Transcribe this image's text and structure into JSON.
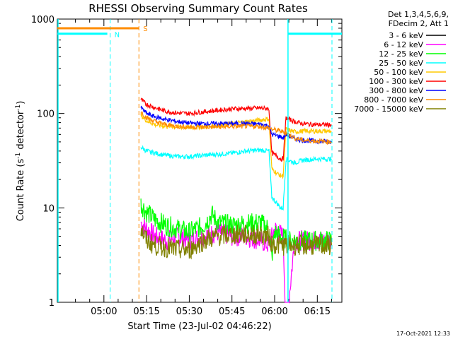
{
  "chart_data": {
    "type": "line",
    "title": "RHESSI Observing Summary Count Rates",
    "xlabel": "Start Time (23-Jul-02 04:46:22)",
    "ylabel_main": "Count Rate (s",
    "ylabel_sup1": "-1",
    "ylabel_mid": " detector",
    "ylabel_sup2": "-1",
    "ylabel_end": ")",
    "yscale": "log",
    "ylim": [
      1,
      1000
    ],
    "xlim_minutes": [
      -16.37,
      83.63
    ],
    "x_ticks": [
      {
        "label": "05:00",
        "min": 0
      },
      {
        "label": "05:15",
        "min": 15
      },
      {
        "label": "05:30",
        "min": 30
      },
      {
        "label": "05:45",
        "min": 45
      },
      {
        "label": "06:00",
        "min": 60
      },
      {
        "label": "06:15",
        "min": 75
      }
    ],
    "y_ticks": [
      {
        "label": "1",
        "value": 1
      },
      {
        "label": "10",
        "value": 10
      },
      {
        "label": "100",
        "value": 100
      },
      {
        "label": "1000",
        "value": 1000
      }
    ],
    "legend_header": [
      "Det 1,3,4,5,6,9,",
      "FDecim 2, Att 1"
    ],
    "series": [
      {
        "name": "3 - 6 keV",
        "color": "#000000",
        "values": []
      },
      {
        "name": "6 - 12 keV",
        "color": "#ff00ff",
        "values": [
          [
            13,
            7
          ],
          [
            15,
            6
          ],
          [
            18,
            5
          ],
          [
            22,
            4.5
          ],
          [
            26,
            5
          ],
          [
            30,
            4.5
          ],
          [
            35,
            5
          ],
          [
            40,
            5.5
          ],
          [
            45,
            5
          ],
          [
            50,
            5
          ],
          [
            55,
            4.5
          ],
          [
            58,
            4
          ],
          [
            60,
            6
          ],
          [
            63,
            5
          ],
          [
            64,
            0.5
          ],
          [
            67,
            4.5
          ],
          [
            70,
            4.5
          ],
          [
            75,
            4.5
          ],
          [
            80,
            4.5
          ]
        ]
      },
      {
        "name": "12 - 25 keV",
        "color": "#00ff00",
        "values": [
          [
            13,
            11
          ],
          [
            15,
            9
          ],
          [
            18,
            7.5
          ],
          [
            22,
            6.5
          ],
          [
            26,
            6
          ],
          [
            30,
            5.5
          ],
          [
            35,
            6.5
          ],
          [
            38,
            8.5
          ],
          [
            40,
            7
          ],
          [
            45,
            6.5
          ],
          [
            50,
            6.8
          ],
          [
            55,
            7
          ],
          [
            58,
            6
          ],
          [
            59,
            3
          ],
          [
            60,
            5.5
          ],
          [
            62,
            5
          ],
          [
            65,
            4.5
          ],
          [
            70,
            4.5
          ],
          [
            75,
            4.5
          ],
          [
            80,
            4.5
          ]
        ]
      },
      {
        "name": "25 - 50 keV",
        "color": "#00ffff",
        "values": [
          [
            13,
            44
          ],
          [
            15,
            40
          ],
          [
            18,
            38
          ],
          [
            22,
            36
          ],
          [
            26,
            35
          ],
          [
            30,
            35
          ],
          [
            35,
            36
          ],
          [
            40,
            37
          ],
          [
            45,
            38
          ],
          [
            50,
            40
          ],
          [
            55,
            41
          ],
          [
            58,
            40
          ],
          [
            59,
            13
          ],
          [
            61,
            11
          ],
          [
            62,
            10
          ],
          [
            63,
            10
          ],
          [
            64,
            33
          ],
          [
            67,
            30
          ],
          [
            70,
            32
          ],
          [
            75,
            33
          ],
          [
            80,
            33
          ]
        ]
      },
      {
        "name": "50 - 100 keV",
        "color": "#ffc800",
        "values": [
          [
            13,
            95
          ],
          [
            15,
            84
          ],
          [
            18,
            76
          ],
          [
            22,
            73
          ],
          [
            26,
            72
          ],
          [
            30,
            71
          ],
          [
            35,
            72
          ],
          [
            40,
            74
          ],
          [
            45,
            78
          ],
          [
            50,
            82
          ],
          [
            55,
            85
          ],
          [
            58,
            88
          ],
          [
            59,
            26
          ],
          [
            61,
            23
          ],
          [
            62,
            22
          ],
          [
            63,
            22
          ],
          [
            64,
            68
          ],
          [
            67,
            64
          ],
          [
            70,
            65
          ],
          [
            75,
            65
          ],
          [
            80,
            65
          ]
        ]
      },
      {
        "name": "100 - 300 keV",
        "color": "#ff0000",
        "values": [
          [
            13,
            140
          ],
          [
            15,
            125
          ],
          [
            18,
            115
          ],
          [
            22,
            105
          ],
          [
            26,
            101
          ],
          [
            30,
            100
          ],
          [
            35,
            104
          ],
          [
            40,
            108
          ],
          [
            45,
            112
          ],
          [
            50,
            113
          ],
          [
            55,
            114
          ],
          [
            58,
            112
          ],
          [
            59,
            38
          ],
          [
            61,
            35
          ],
          [
            62,
            33
          ],
          [
            63,
            33
          ],
          [
            64,
            90
          ],
          [
            67,
            82
          ],
          [
            70,
            78
          ],
          [
            75,
            76
          ],
          [
            80,
            76
          ]
        ]
      },
      {
        "name": "300 - 800 keV",
        "color": "#0000ff",
        "values": [
          [
            13,
            115
          ],
          [
            15,
            100
          ],
          [
            18,
            92
          ],
          [
            22,
            86
          ],
          [
            26,
            82
          ],
          [
            30,
            79
          ],
          [
            35,
            78
          ],
          [
            40,
            78
          ],
          [
            45,
            78
          ],
          [
            50,
            78
          ],
          [
            55,
            77
          ],
          [
            58,
            74
          ],
          [
            59,
            60
          ],
          [
            62,
            57
          ],
          [
            63,
            55
          ],
          [
            64,
            60
          ],
          [
            67,
            54
          ],
          [
            70,
            52
          ],
          [
            75,
            51
          ],
          [
            80,
            50
          ]
        ]
      },
      {
        "name": "800 - 7000 keV",
        "color": "#ff8c00",
        "values": [
          [
            13,
            105
          ],
          [
            15,
            90
          ],
          [
            18,
            82
          ],
          [
            22,
            76
          ],
          [
            26,
            73
          ],
          [
            30,
            72
          ],
          [
            35,
            72
          ],
          [
            40,
            72
          ],
          [
            45,
            73
          ],
          [
            50,
            73
          ],
          [
            55,
            73
          ],
          [
            58,
            70
          ],
          [
            59,
            68
          ],
          [
            62,
            65
          ],
          [
            63,
            64
          ],
          [
            64,
            62
          ],
          [
            67,
            55
          ],
          [
            70,
            52
          ],
          [
            75,
            51
          ],
          [
            80,
            50
          ]
        ]
      },
      {
        "name": "7000 - 15000 keV",
        "color": "#808000",
        "values": [
          [
            13,
            6
          ],
          [
            15,
            4.5
          ],
          [
            18,
            4
          ],
          [
            22,
            3.8
          ],
          [
            26,
            3.6
          ],
          [
            30,
            3.6
          ],
          [
            35,
            4.5
          ],
          [
            40,
            5
          ],
          [
            45,
            5.2
          ],
          [
            50,
            5.2
          ],
          [
            55,
            5.2
          ],
          [
            58,
            5
          ],
          [
            59,
            4.2
          ],
          [
            62,
            4
          ],
          [
            65,
            4
          ],
          [
            70,
            4
          ],
          [
            75,
            4
          ],
          [
            80,
            4
          ]
        ]
      }
    ],
    "attenuator": {
      "color": "#00ffff",
      "segments": [
        [
          -16.37,
          0
        ],
        [
          64.7,
          83.63
        ]
      ],
      "state_N": "N",
      "state_N_min": 1.2,
      "state_N_mark_min": 2.2,
      "state_S_mark_min": 12.3,
      "state_S_end_min": 64.7
    },
    "saa": {
      "color": "#ff8c00",
      "segment": [
        -16.37,
        12.3
      ],
      "label": "S"
    },
    "cyan_levels": {
      "pre_value": 700,
      "post_value": 700
    },
    "footer_date": "17-Oct-2021 12:33"
  }
}
